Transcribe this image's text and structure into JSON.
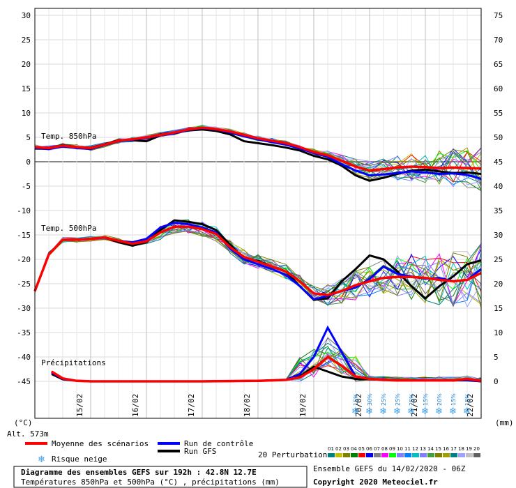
{
  "chart_data": {
    "type": "line",
    "left_axis": {
      "unit": "(°C)",
      "ticks": [
        30,
        25,
        20,
        15,
        10,
        5,
        0,
        -5,
        -10,
        -15,
        -20,
        -25,
        -30,
        -35,
        -40,
        -45
      ]
    },
    "right_axis": {
      "unit": "(mm)",
      "ticks": [
        75,
        70,
        65,
        60,
        55,
        50,
        45,
        40,
        35,
        30,
        25,
        20,
        15,
        10,
        5,
        0
      ]
    },
    "x_ticks": [
      "15/02",
      "16/02",
      "17/02",
      "18/02",
      "19/02",
      "20/02",
      "21/02",
      "22/02"
    ],
    "altitude": "Alt. 573m",
    "panel_labels": {
      "t850": "Temp. 850hPa",
      "t500": "Temp. 500hPa",
      "precip": "Précipitations"
    },
    "snow_risk_pct": [
      "15%",
      "30%",
      "25%",
      "25%",
      "25%",
      "15%",
      "20%",
      "15%",
      "15%"
    ],
    "legend": {
      "mean": "Moyenne des scénarios",
      "control": "Run de contrôle",
      "gfs": "Run GFS",
      "snow": "Risque neige",
      "perturbations": "20 Perturbations",
      "pert_numbers": [
        "01",
        "02",
        "03",
        "04",
        "05",
        "06",
        "07",
        "08",
        "09",
        "10",
        "11",
        "12",
        "13",
        "14",
        "15",
        "16",
        "17",
        "18",
        "19",
        "20"
      ],
      "pert_colors": [
        "#008080",
        "#c0c000",
        "#808000",
        "#008000",
        "#ff0000",
        "#0000ff",
        "#808080",
        "#ff00ff",
        "#00ff00",
        "#8080ff",
        "#0080ff",
        "#00c0c0",
        "#8080ff",
        "#40a040",
        "#808000",
        "#a0a000",
        "#008080",
        "#a0a0ff",
        "#c0c0c0",
        "#606060"
      ]
    },
    "title_box": {
      "line1": "Diagramme des ensembles GEFS sur 192h : 42.8N 12.7E",
      "line2": "Températures 850hPa et 500hPa (°C) , précipitations (mm)"
    },
    "ensemble_info": "Ensemble GEFS du 14/02/2020 - 06Z",
    "copyright": "Copyright 2020 Meteociel.fr",
    "colors": {
      "mean": "#ff0000",
      "control": "#0000ff",
      "gfs": "#000000",
      "snow": "#3aa0f0",
      "pct": "#1a7fd4"
    },
    "series_t850": {
      "x": [
        0,
        0.25,
        0.5,
        0.75,
        1,
        1.25,
        1.5,
        1.75,
        2,
        2.25,
        2.5,
        2.75,
        3,
        3.25,
        3.5,
        3.75,
        4,
        4.25,
        4.5,
        4.75,
        5,
        5.25,
        5.5,
        5.75,
        6,
        6.25,
        6.5,
        6.75,
        7,
        7.25,
        7.5,
        7.75,
        8
      ],
      "mean": [
        3,
        2.8,
        3.3,
        3.0,
        2.8,
        3.5,
        4.3,
        4.6,
        5.0,
        5.5,
        6.0,
        6.6,
        7.0,
        6.7,
        6.2,
        5.5,
        4.8,
        4.3,
        3.8,
        3.0,
        2.0,
        1.3,
        0.2,
        -1.0,
        -1.8,
        -1.5,
        -1.2,
        -1.0,
        -1.1,
        -1.3,
        -1.2,
        -1.3,
        -1.4
      ],
      "control": [
        2.8,
        2.6,
        3.1,
        2.8,
        2.6,
        3.4,
        4.2,
        4.5,
        4.9,
        5.4,
        5.8,
        6.5,
        6.9,
        6.6,
        6.0,
        5.2,
        4.6,
        4.0,
        3.5,
        2.7,
        1.8,
        1.0,
        -0.5,
        -1.8,
        -2.8,
        -2.6,
        -2.3,
        -2.0,
        -2.2,
        -2.5,
        -2.4,
        -2.7,
        -3.5
      ],
      "gfs": [
        3,
        2.8,
        3.4,
        3.0,
        2.9,
        3.6,
        4.4,
        4.4,
        4.2,
        5.4,
        5.9,
        6.4,
        6.6,
        6.3,
        5.6,
        4.2,
        3.8,
        3.4,
        2.9,
        2.3,
        1.2,
        0.5,
        -0.8,
        -2.8,
        -3.9,
        -3.3,
        -2.5,
        -1.8,
        -1.6,
        -2.0,
        -2.3,
        -2.2,
        -2.5
      ]
    },
    "series_t500": {
      "x": [
        0,
        0.25,
        0.5,
        0.75,
        1,
        1.25,
        1.5,
        1.75,
        2,
        2.25,
        2.5,
        2.75,
        3,
        3.25,
        3.5,
        3.75,
        4,
        4.25,
        4.5,
        4.75,
        5,
        5.25,
        5.5,
        5.75,
        6,
        6.25,
        6.5,
        6.75,
        7,
        7.25,
        7.5,
        7.75,
        8
      ],
      "mean": [
        -26.5,
        -19,
        -16,
        -16,
        -15.8,
        -15.5,
        -16.2,
        -16.8,
        -16.3,
        -14.5,
        -13.3,
        -13.3,
        -13.8,
        -14.8,
        -17.5,
        -19.5,
        -20.5,
        -21.5,
        -22.5,
        -24.5,
        -27,
        -27.3,
        -26.5,
        -25.3,
        -24.5,
        -23.8,
        -23.6,
        -23.6,
        -23.8,
        -24.2,
        -24.5,
        -24.2,
        -22.8
      ],
      "control": [
        -26.5,
        -19,
        -16,
        -16,
        -15.8,
        -15.5,
        -16.2,
        -16.5,
        -15.8,
        -13.5,
        -12.5,
        -12.8,
        -13.5,
        -14.5,
        -17.8,
        -20.0,
        -21.0,
        -22.0,
        -23.2,
        -25.5,
        -28.2,
        -27.5,
        -26.5,
        -25.8,
        -24.0,
        -21.5,
        -23.0,
        -23.5,
        -24.0,
        -23.8,
        -24.5,
        -24.2,
        -22.0
      ],
      "gfs": [
        -26.5,
        -19,
        -16,
        -16,
        -15.8,
        -15.5,
        -16.5,
        -17.2,
        -16.5,
        -14.0,
        -12.0,
        -12.3,
        -12.8,
        -14.0,
        -17.0,
        -19.8,
        -20.3,
        -21.5,
        -22.5,
        -25.5,
        -28.3,
        -28.0,
        -24.5,
        -22.0,
        -19.2,
        -20.0,
        -22.5,
        -25.5,
        -28.0,
        -25.5,
        -23.5,
        -21.0,
        -20.2
      ]
    },
    "series_precip": {
      "x": [
        0.3,
        0.5,
        0.75,
        1,
        2,
        3,
        4,
        4.25,
        4.5,
        4.75,
        5,
        5.25,
        5.5,
        5.75,
        6,
        6.25,
        6.5,
        6.75,
        7,
        7.25,
        7.5,
        7.75,
        8
      ],
      "mean": [
        2.0,
        0.6,
        0.1,
        0,
        0,
        0,
        0.1,
        0.2,
        0.3,
        0.8,
        2.5,
        5.0,
        3.2,
        1.0,
        0.5,
        0.3,
        0.2,
        0.2,
        0.2,
        0.2,
        0.2,
        0.5,
        0.1
      ],
      "control": [
        1.8,
        0.5,
        0.1,
        0,
        0,
        0,
        0.1,
        0.2,
        0.3,
        1.5,
        5.0,
        11.0,
        6.0,
        1.0,
        0.5,
        0.3,
        0.2,
        0.2,
        0.2,
        0.2,
        0.2,
        0.3,
        0
      ],
      "gfs": [
        1.5,
        0.4,
        0.1,
        0,
        0,
        0,
        0.1,
        0.2,
        0.3,
        1.0,
        3.0,
        2.0,
        1.0,
        0.5,
        0.4,
        0.3,
        0.2,
        0.2,
        0.2,
        0.2,
        0.2,
        0.2,
        0
      ]
    }
  }
}
